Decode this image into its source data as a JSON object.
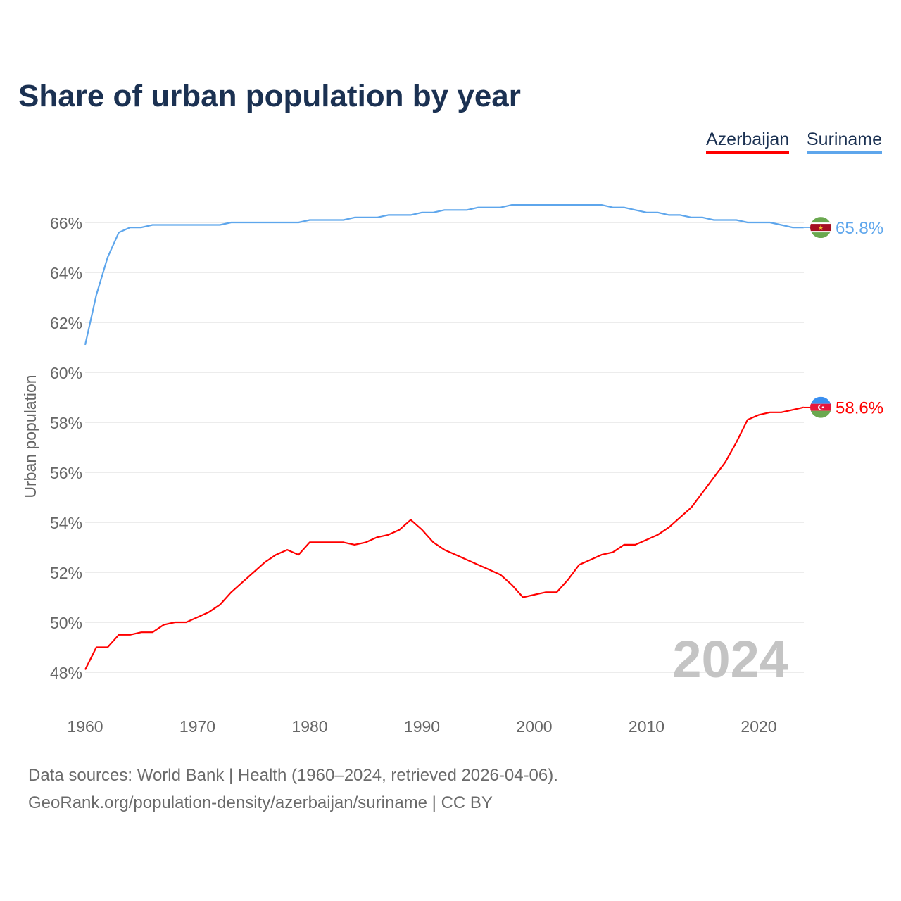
{
  "chart_data": {
    "type": "line",
    "title": "Share of urban population by year",
    "xlabel": "",
    "ylabel": "Urban population",
    "xlim": [
      1960,
      2024
    ],
    "ylim": [
      47,
      67.5
    ],
    "x_ticks": [
      1960,
      1970,
      1980,
      1990,
      2000,
      2010,
      2020
    ],
    "x_tick_labels": [
      "1960",
      "1970",
      "1980",
      "1990",
      "2000",
      "2010",
      "2020"
    ],
    "y_ticks": [
      48,
      50,
      52,
      54,
      56,
      58,
      60,
      62,
      64,
      66
    ],
    "y_tick_labels": [
      "48%",
      "50%",
      "52%",
      "54%",
      "56%",
      "58%",
      "60%",
      "62%",
      "64%",
      "66%"
    ],
    "grid": true,
    "legend_position": "top-right",
    "year_watermark": "2024",
    "x": [
      1960,
      1961,
      1962,
      1963,
      1964,
      1965,
      1966,
      1967,
      1968,
      1969,
      1970,
      1971,
      1972,
      1973,
      1974,
      1975,
      1976,
      1977,
      1978,
      1979,
      1980,
      1981,
      1982,
      1983,
      1984,
      1985,
      1986,
      1987,
      1988,
      1989,
      1990,
      1991,
      1992,
      1993,
      1994,
      1995,
      1996,
      1997,
      1998,
      1999,
      2000,
      2001,
      2002,
      2003,
      2004,
      2005,
      2006,
      2007,
      2008,
      2009,
      2010,
      2011,
      2012,
      2013,
      2014,
      2015,
      2016,
      2017,
      2018,
      2019,
      2020,
      2021,
      2022,
      2023,
      2024
    ],
    "series": [
      {
        "name": "Azerbaijan",
        "color": "#ff0000",
        "end_label": "58.6%",
        "values": [
          48.1,
          49.0,
          49.0,
          49.5,
          49.5,
          49.6,
          49.6,
          49.9,
          50.0,
          50.0,
          50.2,
          50.4,
          50.7,
          51.2,
          51.6,
          52.0,
          52.4,
          52.7,
          52.9,
          52.7,
          53.2,
          53.2,
          53.2,
          53.2,
          53.1,
          53.2,
          53.4,
          53.5,
          53.7,
          54.1,
          53.7,
          53.2,
          52.9,
          52.7,
          52.5,
          52.3,
          52.1,
          51.9,
          51.5,
          51.0,
          51.1,
          51.2,
          51.2,
          51.7,
          52.3,
          52.5,
          52.7,
          52.8,
          53.1,
          53.1,
          53.3,
          53.5,
          53.8,
          54.2,
          54.6,
          55.2,
          55.8,
          56.4,
          57.2,
          58.1,
          58.3,
          58.4,
          58.4,
          58.5,
          58.6
        ]
      },
      {
        "name": "Suriname",
        "color": "#5ea6ec",
        "end_label": "65.8%",
        "values": [
          61.1,
          63.1,
          64.6,
          65.6,
          65.8,
          65.8,
          65.9,
          65.9,
          65.9,
          65.9,
          65.9,
          65.9,
          65.9,
          66.0,
          66.0,
          66.0,
          66.0,
          66.0,
          66.0,
          66.0,
          66.1,
          66.1,
          66.1,
          66.1,
          66.2,
          66.2,
          66.2,
          66.3,
          66.3,
          66.3,
          66.4,
          66.4,
          66.5,
          66.5,
          66.5,
          66.6,
          66.6,
          66.6,
          66.7,
          66.7,
          66.7,
          66.7,
          66.7,
          66.7,
          66.7,
          66.7,
          66.7,
          66.6,
          66.6,
          66.5,
          66.4,
          66.4,
          66.3,
          66.3,
          66.2,
          66.2,
          66.1,
          66.1,
          66.1,
          66.0,
          66.0,
          66.0,
          65.9,
          65.8,
          65.8
        ]
      }
    ]
  },
  "sources": {
    "line1": "Data sources: World Bank | Health (1960–2024, retrieved 2026-04-06).",
    "line2": "GeoRank.org/population-density/azerbaijan/suriname | CC BY"
  }
}
